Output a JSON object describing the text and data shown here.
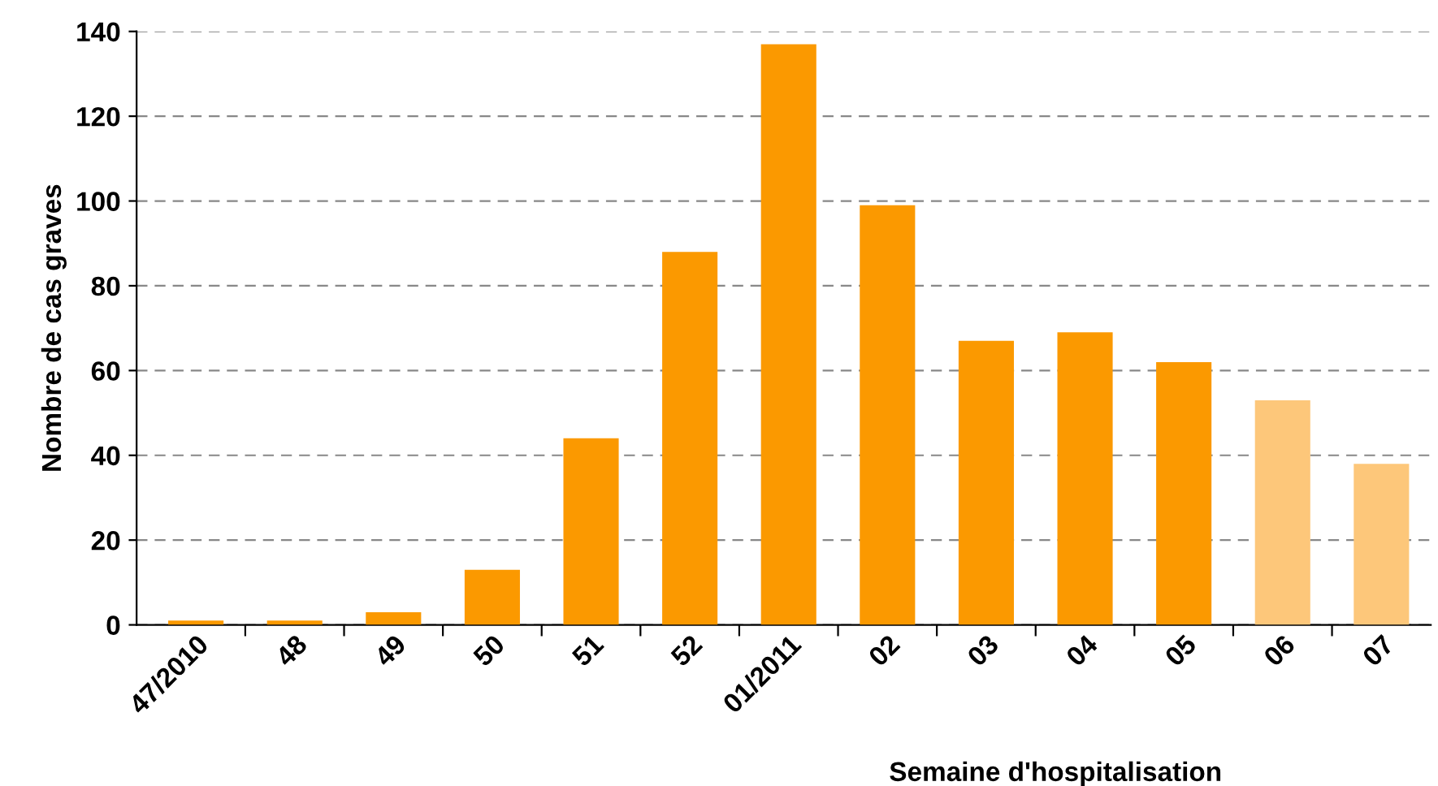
{
  "chart_data": {
    "type": "bar",
    "xlabel": "Semaine d'hospitalisation",
    "ylabel": "Nombre de cas graves",
    "categories": [
      "47/2010",
      "48",
      "49",
      "50",
      "51",
      "52",
      "01/2011",
      "02",
      "03",
      "04",
      "05",
      "06",
      "07"
    ],
    "values": [
      1,
      1,
      3,
      13,
      44,
      88,
      137,
      99,
      67,
      69,
      62,
      53,
      38
    ],
    "colors": [
      "#fb9900",
      "#fb9900",
      "#fb9900",
      "#fb9900",
      "#fb9900",
      "#fb9900",
      "#fb9900",
      "#fb9900",
      "#fb9900",
      "#fb9900",
      "#fb9900",
      "#fdc77a",
      "#fdc77a"
    ],
    "ylim": [
      0,
      140
    ],
    "yticks": [
      0,
      20,
      40,
      60,
      80,
      100,
      120,
      140
    ],
    "grid": "y",
    "legend": false
  }
}
